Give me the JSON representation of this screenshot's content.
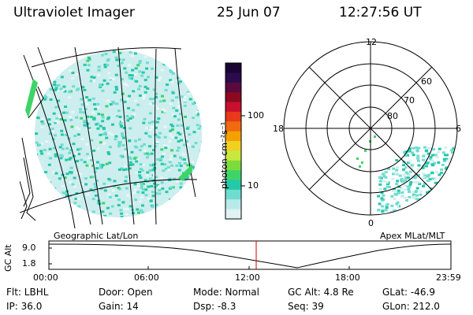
{
  "header": {
    "title": "Ultraviolet Imager",
    "date": "25 Jun 07",
    "time": "12:27:56 UT"
  },
  "left_panel": {
    "caption": "Geographic Lat/Lon"
  },
  "colorbar": {
    "unit_label": "photon cm⁻²s⁻¹",
    "tick_labels": [
      "100",
      "10"
    ],
    "colors_top_to_bottom": [
      "#1a0633",
      "#2b0a4d",
      "#5a0a3c",
      "#8b0a1f",
      "#c8102e",
      "#e63a1a",
      "#f06a10",
      "#f5a000",
      "#f0d020",
      "#c8e840",
      "#7ddc3c",
      "#3ed468",
      "#25c8a8",
      "#6fdcd0",
      "#b8eaea",
      "#e0f2f2"
    ]
  },
  "polar_panel": {
    "caption": "Apex MLat/MLT",
    "mlt_labels": {
      "top": "12",
      "left": "18",
      "right": "6",
      "bottom": "0"
    },
    "lat_labels": [
      "60",
      "70",
      "80"
    ]
  },
  "timeline": {
    "ylabel": "GC Alt",
    "y_ticks": [
      "9.0",
      "1.8"
    ],
    "x_ticks": [
      "00:00",
      "06:00",
      "12:00",
      "18:00",
      "23:59"
    ],
    "current_time_color": "#cc0000"
  },
  "info": {
    "flt": "Flt: LBHL",
    "ip": "IP: 36.0",
    "door": "Door: Open",
    "gain": "Gain: 14",
    "mode": "Mode: Normal",
    "dsp": "Dsp:   -8.3",
    "gc_alt": "GC Alt: 4.8 Re",
    "seq": "Seq: 39",
    "glat": "GLat: -46.9",
    "glon": "GLon: 212.0"
  },
  "colors": {
    "emission_light": "#cdeeee",
    "emission_mid": "#6fdcd0",
    "emission_strong": "#25c8a8",
    "emission_green": "#3ed468"
  }
}
